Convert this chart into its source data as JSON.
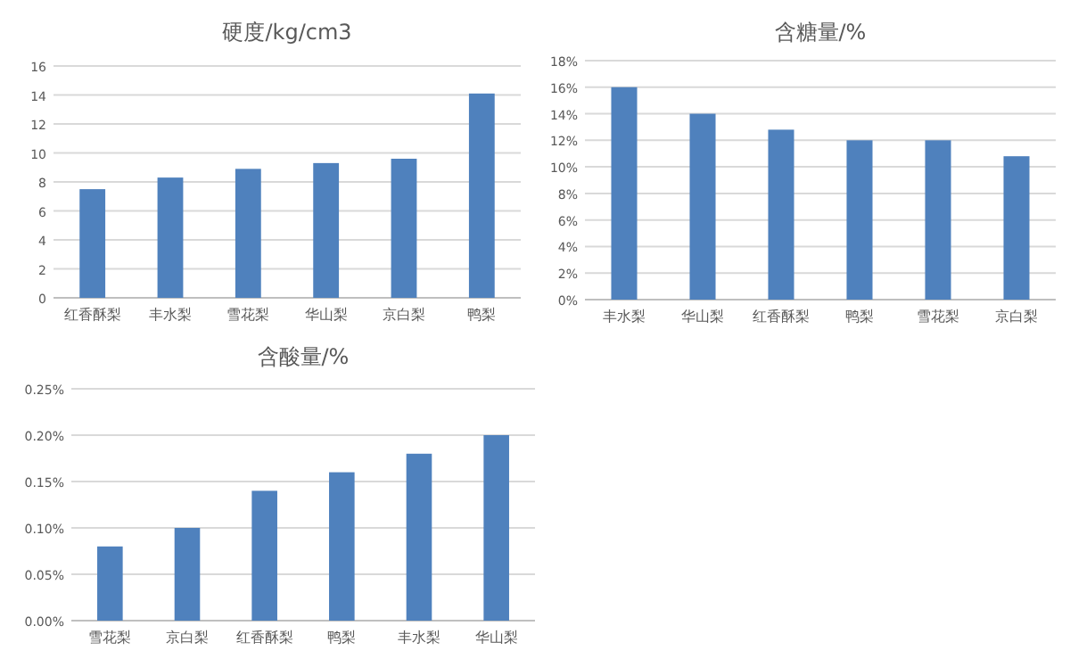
{
  "chart_data": [
    {
      "type": "bar",
      "title": "硬度/kg/cm3",
      "categories": [
        "红香酥梨",
        "丰水梨",
        "雪花梨",
        "华山梨",
        "京白梨",
        "鸭梨"
      ],
      "series": [
        {
          "color": "#4f81bd",
          "values": [
            7.5,
            8.3,
            8.9,
            9.3,
            9.6,
            14.1
          ]
        }
      ],
      "ylim": [
        0,
        16
      ],
      "yticks": [
        0,
        2,
        4,
        6,
        8,
        10,
        12,
        14,
        16
      ],
      "grid": "y"
    },
    {
      "type": "bar",
      "title": "含糖量/%",
      "categories": [
        "丰水梨",
        "华山梨",
        "红香酥梨",
        "鸭梨",
        "雪花梨",
        "京白梨"
      ],
      "series": [
        {
          "color": "#4f81bd",
          "values": [
            16,
            14,
            12.8,
            12,
            12,
            10.8
          ]
        }
      ],
      "ylim": [
        0,
        18
      ],
      "yticks": [
        {
          "value": 0,
          "label": "0%"
        },
        {
          "value": 2,
          "label": "2%"
        },
        {
          "value": 4,
          "label": "4%"
        },
        {
          "value": 6,
          "label": "6%"
        },
        {
          "value": 8,
          "label": "8%"
        },
        {
          "value": 10,
          "label": "10%"
        },
        {
          "value": 12,
          "label": "12%"
        },
        {
          "value": 14,
          "label": "14%"
        },
        {
          "value": 16,
          "label": "16%"
        },
        {
          "value": 18,
          "label": "18%"
        }
      ],
      "grid": "y"
    },
    {
      "type": "bar",
      "title": "含酸量/%",
      "categories": [
        "雪花梨",
        "京白梨",
        "红香酥梨",
        "鸭梨",
        "丰水梨",
        "华山梨"
      ],
      "series": [
        {
          "color": "#4f81bd",
          "values": [
            0.08,
            0.1,
            0.14,
            0.16,
            0.18,
            0.2
          ]
        }
      ],
      "ylim": [
        0,
        0.25
      ],
      "yticks": [
        {
          "value": 0,
          "label": "0.00%"
        },
        {
          "value": 0.05,
          "label": "0.05%"
        },
        {
          "value": 0.1,
          "label": "0.10%"
        },
        {
          "value": 0.15,
          "label": "0.15%"
        },
        {
          "value": 0.2,
          "label": "0.20%"
        },
        {
          "value": 0.25,
          "label": "0.25%"
        }
      ],
      "grid": "y"
    }
  ]
}
